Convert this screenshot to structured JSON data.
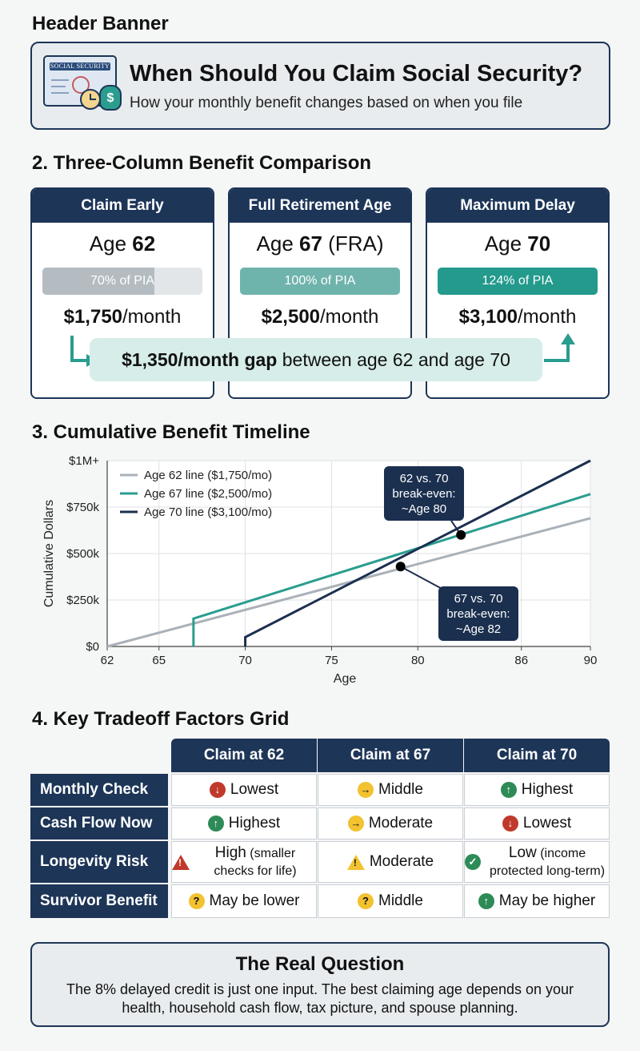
{
  "sections": {
    "header": "Header Banner",
    "comparison": "2. Three-Column Benefit Comparison",
    "timeline": "3. Cumulative Benefit Timeline",
    "grid": "4. Key Tradeoff Factors Grid"
  },
  "header": {
    "card_text": "SOCIAL SECURITY",
    "title": "When Should You Claim Social Security?",
    "subtitle": "How your monthly benefit changes based on when you file"
  },
  "cards": [
    {
      "head": "Claim Early",
      "age_prefix": "Age ",
      "age": "62",
      "age_suffix": "",
      "pct_label": "70% of PIA",
      "pct": 70,
      "color": "#b4bcc2",
      "amount": "$1,750",
      "per": "/month"
    },
    {
      "head": "Full Retirement Age",
      "age_prefix": "Age ",
      "age": "67",
      "age_suffix": " (FRA)",
      "pct_label": "100% of PIA",
      "pct": 100,
      "color": "#6fb3ad",
      "amount": "$2,500",
      "per": "/month"
    },
    {
      "head": "Maximum Delay",
      "age_prefix": "Age ",
      "age": "70",
      "age_suffix": "",
      "pct_label": "124% of PIA",
      "pct": 100,
      "color": "#239a8c",
      "amount": "$3,100",
      "per": "/month"
    }
  ],
  "gap": {
    "bold": "$1,350/month gap",
    "rest": " between age 62 and age 70"
  },
  "colors": {
    "navy": "#1d3557",
    "teal": "#2a9d8f",
    "gray": "#aab1b8",
    "dark": "#1b2f4f"
  },
  "chart_data": {
    "type": "line",
    "xlabel": "Age",
    "ylabel": "Cumulative Dollars",
    "x_ticks": [
      62,
      65,
      70,
      75,
      80,
      86,
      90
    ],
    "y_ticks": [
      0,
      250000,
      500000,
      750000,
      1000000
    ],
    "y_tick_labels": [
      "$0",
      "$250k",
      "$500k",
      "$750k",
      "$1M+"
    ],
    "ylim": [
      0,
      1000000
    ],
    "grid": true,
    "legend_position": "top-left",
    "series": [
      {
        "name": "Age 62 line ($1,750/mo)",
        "color": "#aab1b8",
        "points": [
          [
            62,
            0
          ],
          [
            90,
            690000
          ]
        ]
      },
      {
        "name": "Age 67 line ($2,500/mo)",
        "color": "#2a9d8f",
        "points": [
          [
            67,
            0
          ],
          [
            67,
            150000
          ],
          [
            90,
            820000
          ]
        ]
      },
      {
        "name": "Age 70 line ($3,100/mo)",
        "color": "#1b2f4f",
        "points": [
          [
            70,
            0
          ],
          [
            70,
            50000
          ],
          [
            90,
            1000000
          ]
        ]
      }
    ],
    "annotations": [
      {
        "lines": [
          "62 vs. 70",
          "break-even:",
          "~Age 80"
        ],
        "x": 82.5,
        "y": 600000
      },
      {
        "lines": [
          "67 vs. 70",
          "break-even:",
          "~Age 82"
        ],
        "x": 79,
        "y": 430000
      }
    ]
  },
  "grid": {
    "columns": [
      "Claim at 62",
      "Claim at 67",
      "Claim at 70"
    ],
    "rows": [
      {
        "label": "Monthly Check",
        "cells": [
          {
            "icon": "down",
            "text": "Lowest",
            "note": ""
          },
          {
            "icon": "right",
            "text": "Middle",
            "note": ""
          },
          {
            "icon": "up",
            "text": "Highest",
            "note": ""
          }
        ]
      },
      {
        "label": "Cash Flow Now",
        "cells": [
          {
            "icon": "up",
            "text": "Highest",
            "note": ""
          },
          {
            "icon": "right",
            "text": "Moderate",
            "note": ""
          },
          {
            "icon": "down",
            "text": "Lowest",
            "note": ""
          }
        ]
      },
      {
        "label": "Longevity Risk",
        "cells": [
          {
            "icon": "warn-red",
            "text": "High",
            "note": " (smaller checks for life)"
          },
          {
            "icon": "warn-yellow",
            "text": "Moderate",
            "note": ""
          },
          {
            "icon": "check",
            "text": "Low",
            "note": " (income protected long-term)"
          }
        ]
      },
      {
        "label": "Survivor Benefit",
        "cells": [
          {
            "icon": "q",
            "text": "May be lower",
            "note": ""
          },
          {
            "icon": "q",
            "text": "Middle",
            "note": ""
          },
          {
            "icon": "up",
            "text": "May be higher",
            "note": ""
          }
        ]
      }
    ]
  },
  "real_question": {
    "title": "The Real Question",
    "body": "The 8% delayed credit is just one input. The best claiming age depends on your health, household cash flow, tax picture, and spouse planning."
  }
}
